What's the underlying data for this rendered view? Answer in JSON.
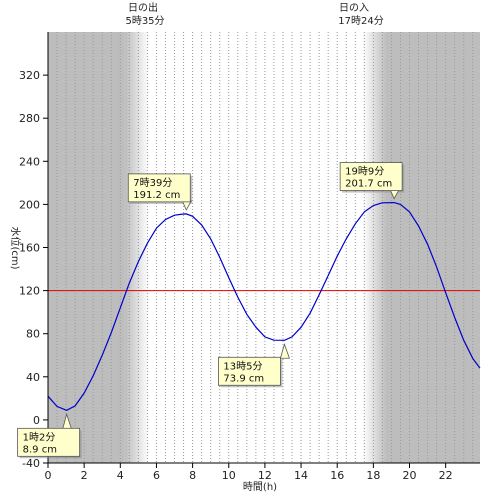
{
  "chart_data": {
    "type": "line",
    "xlabel": "時間(h)",
    "ylabel": "水位(cm)",
    "xlim": [
      0,
      23.9
    ],
    "ylim": [
      -40,
      360
    ],
    "x_ticks": [
      0,
      2,
      4,
      6,
      8,
      10,
      12,
      14,
      16,
      18,
      20,
      22
    ],
    "x_tick_labels": [
      "0",
      "2",
      "4",
      "6",
      "8",
      "10",
      "12",
      "14",
      "16",
      "18",
      "20",
      "22"
    ],
    "y_ticks": [
      -40,
      0,
      40,
      80,
      120,
      160,
      200,
      240,
      280,
      320
    ],
    "y_tick_labels": [
      "-40",
      "0",
      "40",
      "80",
      "120",
      "160",
      "200",
      "240",
      "280",
      "320"
    ],
    "grid": "vertical dotted every 0.5h",
    "reference_line": {
      "y": 120,
      "color": "#e00000"
    },
    "series": [
      {
        "color": "#0000cc",
        "x": [
          0,
          0.5,
          1.03,
          1.5,
          2,
          2.5,
          3,
          3.5,
          4,
          4.5,
          5,
          5.5,
          6,
          6.5,
          7,
          7.5,
          7.65,
          8,
          8.5,
          9,
          9.5,
          10,
          10.5,
          11,
          11.5,
          12,
          12.5,
          13.08,
          13.5,
          14,
          14.5,
          15,
          15.5,
          16,
          16.5,
          17,
          17.5,
          18,
          18.5,
          19.15,
          19.5,
          20,
          20.5,
          21,
          21.5,
          22,
          22.5,
          23,
          23.5,
          23.9
        ],
        "y": [
          22,
          12.5,
          8.9,
          13,
          25,
          41,
          60,
          81,
          104,
          127,
          147,
          164,
          178,
          186,
          190,
          191.1,
          191.2,
          189,
          181,
          168,
          151,
          132,
          114,
          98,
          86,
          77,
          74,
          73.9,
          77,
          86,
          99,
          116,
          134,
          152,
          168,
          182,
          193,
          199,
          201.5,
          201.7,
          200,
          193,
          180,
          163,
          142,
          118,
          95,
          74,
          57,
          48
        ]
      }
    ],
    "extremes": [
      {
        "time": "1時2分",
        "level": "8.9 cm",
        "x": 1.03,
        "y": 8.9
      },
      {
        "time": "7時39分",
        "level": "191.2 cm",
        "x": 7.65,
        "y": 191.2
      },
      {
        "time": "13時5分",
        "level": "73.9 cm",
        "x": 13.08,
        "y": 73.9
      },
      {
        "time": "19時9分",
        "level": "201.7 cm",
        "x": 19.15,
        "y": 201.7
      }
    ],
    "sunrise": {
      "label": "日の出",
      "time": "5時35分",
      "x": 5.583
    },
    "sunset": {
      "label": "日の入",
      "time": "17時24分",
      "x": 17.4
    },
    "colors": {
      "night": "#bdbdbd",
      "day": "#ffffff",
      "grid": "#999999"
    }
  }
}
